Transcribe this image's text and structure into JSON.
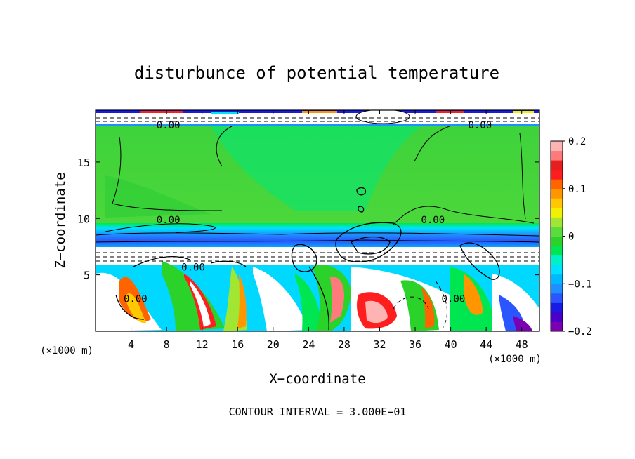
{
  "chart_data": {
    "type": "heatmap",
    "title": "disturbunce of potential temperature",
    "xlabel": "X−coordinate",
    "ylabel": "Z−coordinate",
    "x_unit_label": "(×1000 m)",
    "z_unit_label": "(×1000 m)",
    "footer": "CONTOUR INTERVAL = 3.000E−01",
    "xlim": [
      0,
      50
    ],
    "zlim": [
      0,
      19.6
    ],
    "x_ticks": [
      4,
      8,
      12,
      16,
      20,
      24,
      28,
      32,
      36,
      40,
      44,
      48
    ],
    "z_ticks": [
      5,
      10,
      15
    ],
    "colorbar": {
      "min": -0.2,
      "max": 0.2,
      "tick_values": [
        0.2,
        0.1,
        0,
        -0.1,
        -0.2
      ],
      "tick_labels": [
        "0.2",
        "0.1",
        "0",
        "−0.1",
        "−0.2"
      ],
      "colors": [
        "#7b00b4",
        "#4b00c8",
        "#1a1ae6",
        "#2a55ff",
        "#1e90ff",
        "#00b8ff",
        "#00e1ff",
        "#00f0c8",
        "#00e650",
        "#2ad22a",
        "#5adc3c",
        "#a0e632",
        "#f0f000",
        "#ffc800",
        "#ff9600",
        "#ff6400",
        "#ff1e1e",
        "#e61e1e",
        "#ff7a7a",
        "#ffb4b4"
      ]
    },
    "contour_labels": [
      {
        "text": "0.00",
        "x": 8.2,
        "z": 18.3
      },
      {
        "text": "0.00",
        "x": 43.3,
        "z": 18.3
      },
      {
        "text": "0.00",
        "x": 8.2,
        "z": 9.9
      },
      {
        "text": "0.00",
        "x": 38.0,
        "z": 9.9
      },
      {
        "text": "0.00",
        "x": 11.0,
        "z": 5.7
      },
      {
        "text": "0.00",
        "x": 4.5,
        "z": 2.9
      },
      {
        "text": "0.00",
        "x": 40.3,
        "z": 2.9
      }
    ]
  }
}
